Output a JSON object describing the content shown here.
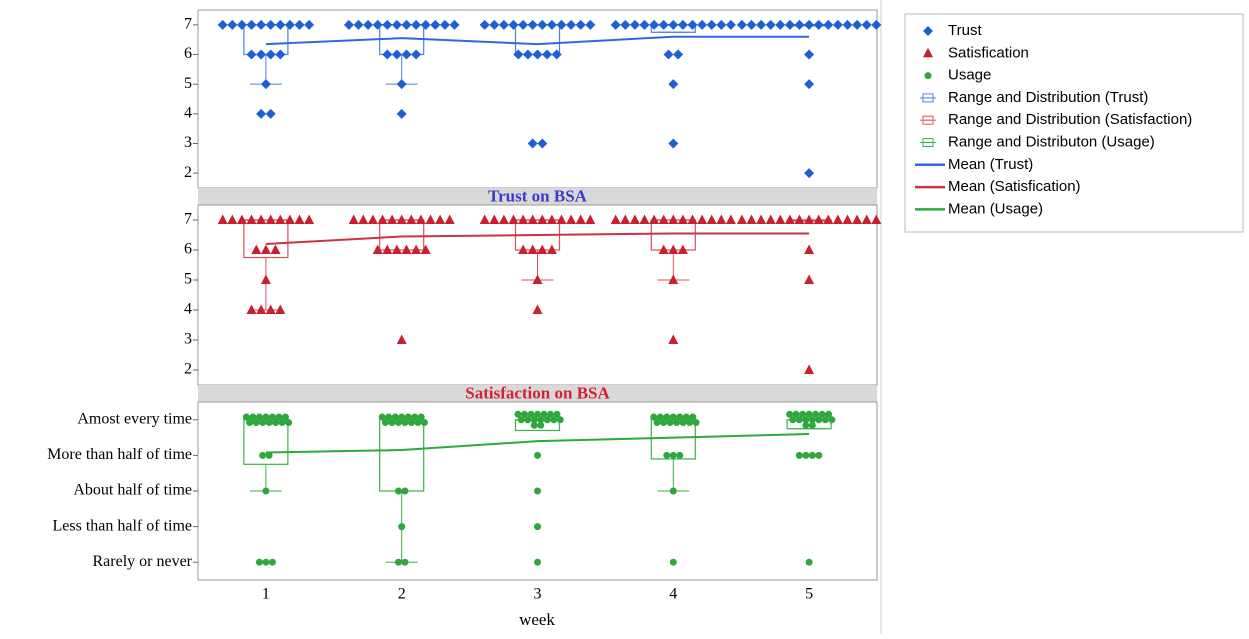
{
  "chart_data": {
    "type": "box",
    "categories": [
      "1",
      "2",
      "3",
      "4",
      "5"
    ],
    "xlabel": "week",
    "panels": [
      {
        "title": "Trust on BSA",
        "title_color": "#3b3bc8",
        "ylim": [
          1.5,
          7.5
        ],
        "yticks": [
          2,
          3,
          4,
          5,
          6,
          7
        ],
        "points": {
          "name": "Trust",
          "color": "#1f5fd6",
          "marker": "diamond",
          "values": [
            [
              7,
              7,
              7,
              7,
              7,
              7,
              7,
              7,
              7,
              7,
              6,
              6,
              6,
              6,
              5,
              4,
              4
            ],
            [
              7,
              7,
              7,
              7,
              7,
              7,
              7,
              7,
              7,
              7,
              7,
              7,
              6,
              6,
              6,
              6,
              5,
              4
            ],
            [
              7,
              7,
              7,
              7,
              7,
              7,
              7,
              7,
              7,
              7,
              7,
              7,
              6,
              6,
              6,
              6,
              6,
              3,
              3
            ],
            [
              7,
              7,
              7,
              7,
              7,
              7,
              7,
              7,
              7,
              7,
              7,
              7,
              7,
              6,
              6,
              5,
              3
            ],
            [
              7,
              7,
              7,
              7,
              7,
              7,
              7,
              7,
              7,
              7,
              7,
              7,
              7,
              7,
              7,
              6,
              5,
              2
            ]
          ]
        },
        "box": {
          "name": "Range and Distribution (Trust)",
          "color": "#4a7fe0",
          "q1": [
            6,
            6,
            6,
            6.75,
            7
          ],
          "median": [
            7,
            7,
            7,
            7,
            7
          ],
          "q3": [
            7,
            7,
            7,
            7,
            7
          ],
          "whisker_low": [
            5,
            5,
            6,
            6.75,
            7
          ],
          "whisker_high": [
            7,
            7,
            7,
            7,
            7
          ]
        },
        "mean": {
          "name": "Mean (Trust)",
          "color": "#3366dd",
          "values": [
            6.35,
            6.55,
            6.35,
            6.6,
            6.6
          ]
        }
      },
      {
        "title": "Satisfaction on BSA",
        "title_color": "#d62030",
        "ylim": [
          1.5,
          7.5
        ],
        "yticks": [
          2,
          3,
          4,
          5,
          6,
          7
        ],
        "points": {
          "name": "Satisfication",
          "color": "#c8202e",
          "marker": "triangle",
          "values": [
            [
              7,
              7,
              7,
              7,
              7,
              7,
              7,
              7,
              7,
              7,
              6,
              6,
              6,
              5,
              4,
              4,
              4,
              4
            ],
            [
              7,
              7,
              7,
              7,
              7,
              7,
              7,
              7,
              7,
              7,
              7,
              6,
              6,
              6,
              6,
              6,
              6,
              3
            ],
            [
              7,
              7,
              7,
              7,
              7,
              7,
              7,
              7,
              7,
              7,
              7,
              7,
              6,
              6,
              6,
              6,
              5,
              4
            ],
            [
              7,
              7,
              7,
              7,
              7,
              7,
              7,
              7,
              7,
              7,
              7,
              7,
              7,
              6,
              6,
              6,
              5,
              3
            ],
            [
              7,
              7,
              7,
              7,
              7,
              7,
              7,
              7,
              7,
              7,
              7,
              7,
              7,
              7,
              7,
              6,
              5,
              2
            ]
          ]
        },
        "box": {
          "name": "Range and Distribution (Satisfaction)",
          "color": "#d9505c",
          "q1": [
            5.75,
            6,
            6,
            6,
            7
          ],
          "median": [
            7,
            7,
            7,
            7,
            7
          ],
          "q3": [
            7,
            7,
            7,
            7,
            7
          ],
          "whisker_low": [
            4,
            6,
            5,
            5,
            7
          ],
          "whisker_high": [
            7,
            7,
            7,
            7,
            7
          ]
        },
        "mean": {
          "name": "Mean (Satisfication)",
          "color": "#cc3344",
          "values": [
            6.2,
            6.45,
            6.5,
            6.55,
            6.55
          ]
        }
      },
      {
        "ylim": [
          0.5,
          5.5
        ],
        "yticks": [
          {
            "value": 1,
            "label": "Rarely or never"
          },
          {
            "value": 2,
            "label": "Less than half of time"
          },
          {
            "value": 3,
            "label": "About half of time"
          },
          {
            "value": 4,
            "label": "More than half of time"
          },
          {
            "value": 5,
            "label": "Amost every time"
          }
        ],
        "points": {
          "name": "Usage",
          "color": "#2ea83e",
          "marker": "circle",
          "values": [
            [
              5,
              5,
              5,
              5,
              5,
              5,
              5,
              5,
              5,
              5,
              5,
              5,
              5,
              5,
              4,
              4,
              3,
              1,
              1,
              1
            ],
            [
              5,
              5,
              5,
              5,
              5,
              5,
              5,
              5,
              5,
              5,
              5,
              5,
              5,
              5,
              3,
              3,
              2,
              1,
              1
            ],
            [
              5,
              5,
              5,
              5,
              5,
              5,
              5,
              5,
              5,
              5,
              5,
              5,
              5,
              5,
              5,
              5,
              4,
              3,
              2,
              1
            ],
            [
              5,
              5,
              5,
              5,
              5,
              5,
              5,
              5,
              5,
              5,
              5,
              5,
              5,
              5,
              4,
              4,
              4,
              3,
              1
            ],
            [
              5,
              5,
              5,
              5,
              5,
              5,
              5,
              5,
              5,
              5,
              5,
              5,
              5,
              5,
              5,
              5,
              4,
              4,
              4,
              4,
              1
            ]
          ]
        },
        "box": {
          "name": "Range and Distributon (Usage)",
          "color": "#3cb04a",
          "q1": [
            3.75,
            3,
            4.7,
            3.9,
            4.75
          ],
          "median": [
            5,
            5,
            5,
            5,
            5
          ],
          "q3": [
            5,
            5,
            5,
            5,
            5
          ],
          "whisker_low": [
            3,
            1,
            4.7,
            3,
            4.75
          ],
          "whisker_high": [
            5,
            5,
            5,
            5,
            5
          ]
        },
        "mean": {
          "name": "Mean (Usage)",
          "color": "#2ea83e",
          "values": [
            4.08,
            4.15,
            4.4,
            4.5,
            4.6
          ]
        }
      }
    ]
  }
}
